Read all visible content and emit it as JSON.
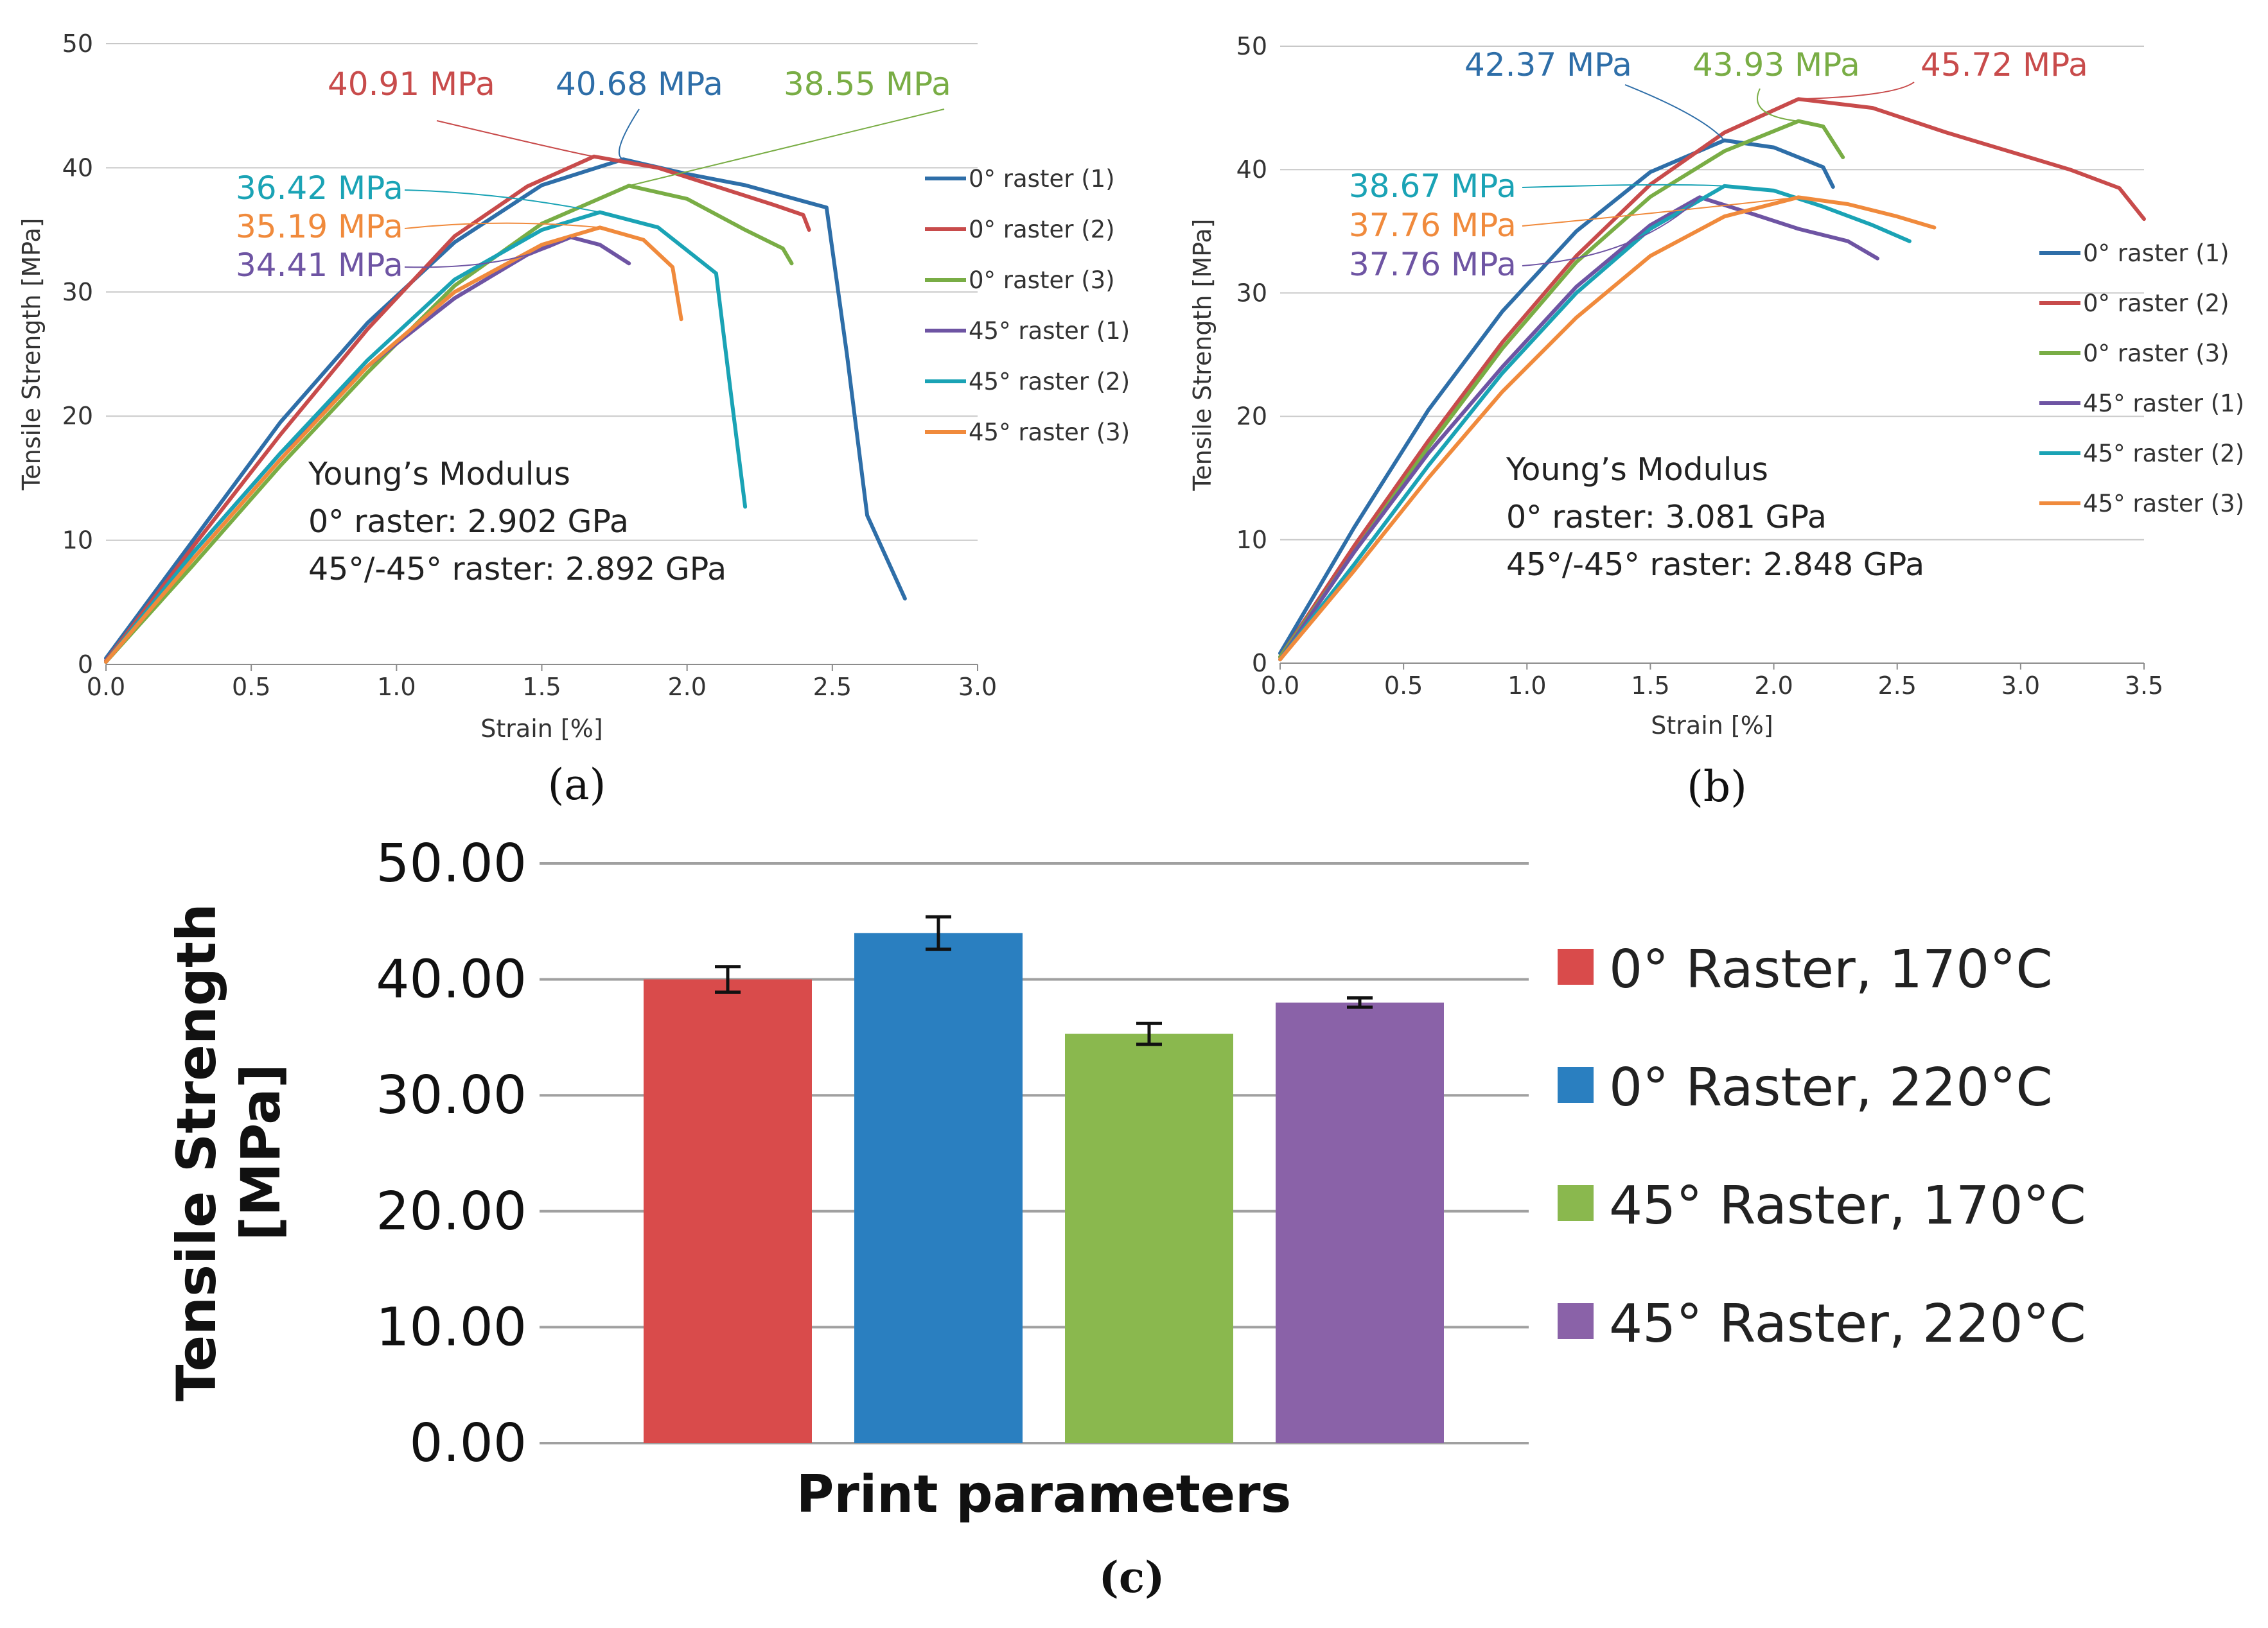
{
  "chart_data": [
    {
      "type": "line",
      "panel_label": "(a)",
      "xlabel": "Strain [%]",
      "ylabel": "Tensile Strength [MPa]",
      "xlim": [
        0,
        3.0
      ],
      "ylim": [
        0,
        50
      ],
      "xticks": [
        "0.0",
        "0.5",
        "1.0",
        "1.5",
        "2.0",
        "2.5",
        "3.0"
      ],
      "yticks": [
        "0",
        "10",
        "20",
        "30",
        "40",
        "50"
      ],
      "grid": "horizontal",
      "legend_position": "right",
      "series": [
        {
          "name": "0° raster (1)",
          "color": "#2E6EA8",
          "points": [
            [
              0,
              0.5
            ],
            [
              0.3,
              10
            ],
            [
              0.6,
              19.5
            ],
            [
              0.9,
              27.5
            ],
            [
              1.2,
              34
            ],
            [
              1.5,
              38.6
            ],
            [
              1.78,
              40.68
            ],
            [
              2.0,
              39.5
            ],
            [
              2.2,
              38.6
            ],
            [
              2.48,
              36.8
            ],
            [
              2.55,
              25
            ],
            [
              2.62,
              12
            ],
            [
              2.75,
              5.3
            ]
          ]
        },
        {
          "name": "0° raster (2)",
          "color": "#C84B4B",
          "points": [
            [
              0,
              0.3
            ],
            [
              0.3,
              9.5
            ],
            [
              0.6,
              18.5
            ],
            [
              0.9,
              27
            ],
            [
              1.2,
              34.5
            ],
            [
              1.45,
              38.5
            ],
            [
              1.68,
              40.91
            ],
            [
              1.9,
              40
            ],
            [
              2.1,
              38.5
            ],
            [
              2.3,
              37
            ],
            [
              2.4,
              36.2
            ],
            [
              2.42,
              35
            ]
          ]
        },
        {
          "name": "0° raster (3)",
          "color": "#79AD45",
          "points": [
            [
              0,
              0.2
            ],
            [
              0.3,
              8
            ],
            [
              0.6,
              16
            ],
            [
              0.9,
              23.5
            ],
            [
              1.2,
              30.5
            ],
            [
              1.5,
              35.5
            ],
            [
              1.8,
              38.55
            ],
            [
              2.0,
              37.5
            ],
            [
              2.2,
              35
            ],
            [
              2.33,
              33.5
            ],
            [
              2.36,
              32.3
            ]
          ]
        },
        {
          "name": "45° raster (1)",
          "color": "#6E54A3",
          "points": [
            [
              0,
              0.2
            ],
            [
              0.3,
              9
            ],
            [
              0.6,
              17
            ],
            [
              0.9,
              24
            ],
            [
              1.2,
              29.5
            ],
            [
              1.45,
              33
            ],
            [
              1.6,
              34.41
            ],
            [
              1.7,
              33.8
            ],
            [
              1.8,
              32.3
            ]
          ]
        },
        {
          "name": "45° raster (2)",
          "color": "#1AA3B5",
          "points": [
            [
              0,
              0.2
            ],
            [
              0.3,
              9
            ],
            [
              0.6,
              17
            ],
            [
              0.9,
              24.5
            ],
            [
              1.2,
              31
            ],
            [
              1.5,
              35
            ],
            [
              1.7,
              36.42
            ],
            [
              1.9,
              35.2
            ],
            [
              2.1,
              31.5
            ],
            [
              2.15,
              22
            ],
            [
              2.2,
              12.7
            ]
          ]
        },
        {
          "name": "45° raster (3)",
          "color": "#F08A3C",
          "points": [
            [
              0,
              0.2
            ],
            [
              0.3,
              8.5
            ],
            [
              0.6,
              16.5
            ],
            [
              0.9,
              24
            ],
            [
              1.2,
              30
            ],
            [
              1.5,
              33.8
            ],
            [
              1.7,
              35.19
            ],
            [
              1.85,
              34.2
            ],
            [
              1.95,
              32
            ],
            [
              1.98,
              27.8
            ]
          ]
        }
      ],
      "annotations": [
        {
          "text": "40.91 MPa",
          "color": "#C84B4B"
        },
        {
          "text": "40.68 MPa",
          "color": "#2E6EA8"
        },
        {
          "text": "38.55 MPa",
          "color": "#79AD45"
        },
        {
          "text": "36.42 MPa",
          "color": "#1AA3B5"
        },
        {
          "text": "35.19 MPa",
          "color": "#F08A3C"
        },
        {
          "text": "34.41 MPa",
          "color": "#6E54A3"
        }
      ],
      "text_block": [
        "Young’s Modulus",
        "0° raster: 2.902 GPa",
        "45°/-45° raster: 2.892 GPa"
      ]
    },
    {
      "type": "line",
      "panel_label": "(b)",
      "xlabel": "Strain [%]",
      "ylabel": "Tensile Strength [MPa]",
      "xlim": [
        0,
        3.5
      ],
      "ylim": [
        0,
        50
      ],
      "xticks": [
        "0.0",
        "0.5",
        "1.0",
        "1.5",
        "2.0",
        "2.5",
        "3.0",
        "3.5"
      ],
      "yticks": [
        "0",
        "10",
        "20",
        "30",
        "40",
        "50"
      ],
      "grid": "horizontal",
      "legend_position": "right",
      "series": [
        {
          "name": "0° raster (1)",
          "color": "#2E6EA8",
          "points": [
            [
              0,
              0.8
            ],
            [
              0.3,
              11
            ],
            [
              0.6,
              20.5
            ],
            [
              0.9,
              28.5
            ],
            [
              1.2,
              35
            ],
            [
              1.5,
              39.8
            ],
            [
              1.8,
              42.37
            ],
            [
              2.0,
              41.8
            ],
            [
              2.2,
              40.2
            ],
            [
              2.24,
              38.6
            ]
          ]
        },
        {
          "name": "0° raster (2)",
          "color": "#C84B4B",
          "points": [
            [
              0,
              0.5
            ],
            [
              0.3,
              9.5
            ],
            [
              0.6,
              18
            ],
            [
              0.9,
              26
            ],
            [
              1.2,
              33
            ],
            [
              1.5,
              38.8
            ],
            [
              1.8,
              43
            ],
            [
              2.1,
              45.72
            ],
            [
              2.4,
              45
            ],
            [
              2.7,
              43
            ],
            [
              3.0,
              41.2
            ],
            [
              3.2,
              40
            ],
            [
              3.4,
              38.5
            ],
            [
              3.5,
              36
            ]
          ]
        },
        {
          "name": "0° raster (3)",
          "color": "#79AD45",
          "points": [
            [
              0,
              0.5
            ],
            [
              0.3,
              9
            ],
            [
              0.6,
              17.5
            ],
            [
              0.9,
              25.5
            ],
            [
              1.2,
              32.5
            ],
            [
              1.5,
              37.8
            ],
            [
              1.8,
              41.5
            ],
            [
              2.1,
              43.93
            ],
            [
              2.2,
              43.5
            ],
            [
              2.28,
              41
            ]
          ]
        },
        {
          "name": "45° raster (1)",
          "color": "#6E54A3",
          "points": [
            [
              0,
              0.3
            ],
            [
              0.3,
              9
            ],
            [
              0.6,
              17
            ],
            [
              0.9,
              24
            ],
            [
              1.2,
              30.5
            ],
            [
              1.5,
              35.5
            ],
            [
              1.7,
              37.76
            ],
            [
              1.9,
              36.5
            ],
            [
              2.1,
              35.2
            ],
            [
              2.3,
              34.2
            ],
            [
              2.42,
              32.8
            ]
          ]
        },
        {
          "name": "45° raster (2)",
          "color": "#1AA3B5",
          "points": [
            [
              0,
              0.3
            ],
            [
              0.3,
              8
            ],
            [
              0.6,
              16
            ],
            [
              0.9,
              23.5
            ],
            [
              1.2,
              30
            ],
            [
              1.5,
              35.2
            ],
            [
              1.8,
              38.67
            ],
            [
              2.0,
              38.3
            ],
            [
              2.2,
              37
            ],
            [
              2.4,
              35.5
            ],
            [
              2.55,
              34.2
            ]
          ]
        },
        {
          "name": "45° raster (3)",
          "color": "#F08A3C",
          "points": [
            [
              0,
              0.3
            ],
            [
              0.3,
              7.5
            ],
            [
              0.6,
              15
            ],
            [
              0.9,
              22
            ],
            [
              1.2,
              28
            ],
            [
              1.5,
              33
            ],
            [
              1.8,
              36.2
            ],
            [
              2.1,
              37.76
            ],
            [
              2.3,
              37.2
            ],
            [
              2.5,
              36.2
            ],
            [
              2.65,
              35.3
            ]
          ]
        }
      ],
      "annotations": [
        {
          "text": "42.37 MPa",
          "color": "#2E6EA8"
        },
        {
          "text": "43.93 MPa",
          "color": "#79AD45"
        },
        {
          "text": "45.72 MPa",
          "color": "#C84B4B"
        },
        {
          "text": "38.67 MPa",
          "color": "#1AA3B5"
        },
        {
          "text": "37.76 MPa",
          "color": "#F08A3C"
        },
        {
          "text": "37.76 MPa",
          "color": "#6E54A3"
        }
      ],
      "text_block": [
        "Young’s Modulus",
        "0° raster: 3.081 GPa",
        "45°/-45° raster: 2.848 GPa"
      ]
    },
    {
      "type": "bar",
      "panel_label": "(c)",
      "xlabel": "Print parameters",
      "ylabel": "Tensile Strength [MPa]",
      "ylim": [
        0,
        50
      ],
      "yticks": [
        "0.00",
        "10.00",
        "20.00",
        "30.00",
        "40.00",
        "50.00"
      ],
      "grid": "horizontal",
      "legend_position": "right",
      "series": [
        {
          "name": "0° Raster, 170°C",
          "value": 40.0,
          "error": 1.1,
          "color": "#D94B4B"
        },
        {
          "name": "0° Raster, 220°C",
          "value": 44.0,
          "error": 1.4,
          "color": "#2A7FC0"
        },
        {
          "name": "45° Raster, 170°C",
          "value": 35.3,
          "error": 0.9,
          "color": "#8AB84E"
        },
        {
          "name": "45° Raster, 220°C",
          "value": 38.0,
          "error": 0.4,
          "color": "#8A62A8"
        }
      ]
    }
  ]
}
